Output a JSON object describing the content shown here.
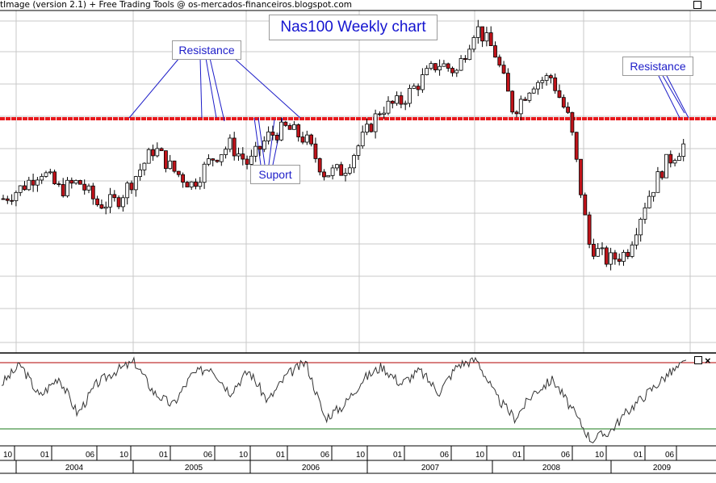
{
  "header": {
    "text": "tImage (version 2.1) + Free Trading Tools @ os-mercados-financeiros.blogspot.com"
  },
  "annotations": {
    "title": "Nas100 Weekly chart",
    "resistance_left": "Resistance",
    "resistance_right": "Resistance",
    "support": "Suport"
  },
  "colors": {
    "resistance_line": "#e8181c",
    "annotation_text": "#1d1dc8",
    "bull_candle": "#ffffff",
    "bear_candle": "#c0131a",
    "oscillator_line": "#333333",
    "oscillator_upper": "#b00000",
    "oscillator_lower": "#1a7a1a"
  },
  "chart_data": [
    {
      "type": "candlestick",
      "name": "Nas100 weekly price",
      "x_range": [
        "2003-08",
        "2009-08"
      ],
      "grid": true,
      "resistance_level": "horizontal line touched in 2004, 2005 and 2009 highs",
      "x": [
        "2003-08",
        "2003-10",
        "2003-12",
        "2004-02",
        "2004-04",
        "2004-06",
        "2004-08",
        "2004-10",
        "2004-12",
        "2005-02",
        "2005-04",
        "2005-06",
        "2005-08",
        "2005-10",
        "2005-12",
        "2006-02",
        "2006-04",
        "2006-06",
        "2006-08",
        "2006-10",
        "2006-12",
        "2007-02",
        "2007-04",
        "2007-06",
        "2007-08",
        "2007-10",
        "2007-12",
        "2008-02",
        "2008-04",
        "2008-06",
        "2008-08",
        "2008-10",
        "2008-12",
        "2009-02",
        "2009-04",
        "2009-06",
        "2009-08"
      ],
      "values": [
        0.64,
        0.68,
        0.74,
        0.67,
        0.7,
        0.62,
        0.63,
        0.72,
        0.82,
        0.74,
        0.69,
        0.78,
        0.83,
        0.76,
        0.86,
        0.89,
        0.85,
        0.73,
        0.74,
        0.85,
        0.96,
        0.98,
        1.05,
        1.12,
        1.09,
        1.25,
        1.16,
        0.95,
        1.05,
        1.07,
        0.91,
        0.48,
        0.42,
        0.45,
        0.63,
        0.76,
        0.83
      ]
    },
    {
      "type": "line",
      "name": "oscillator",
      "x": [
        "2003-08",
        "2003-10",
        "2003-12",
        "2004-02",
        "2004-04",
        "2004-06",
        "2004-08",
        "2004-10",
        "2004-12",
        "2005-02",
        "2005-04",
        "2005-06",
        "2005-08",
        "2005-10",
        "2005-12",
        "2006-02",
        "2006-04",
        "2006-06",
        "2006-08",
        "2006-10",
        "2006-12",
        "2007-02",
        "2007-04",
        "2007-06",
        "2007-08",
        "2007-10",
        "2007-12",
        "2008-02",
        "2008-04",
        "2008-06",
        "2008-08",
        "2008-10",
        "2008-12",
        "2009-02",
        "2009-04",
        "2009-06",
        "2009-08"
      ],
      "values": [
        70,
        92,
        55,
        78,
        35,
        70,
        85,
        95,
        60,
        45,
        80,
        90,
        60,
        85,
        50,
        80,
        95,
        30,
        45,
        75,
        90,
        70,
        85,
        60,
        92,
        98,
        55,
        30,
        60,
        75,
        40,
        5,
        15,
        40,
        60,
        80,
        95
      ],
      "ylim": [
        0,
        100
      ]
    }
  ],
  "axis": {
    "month_ticks": [
      "10",
      "01",
      "06",
      "10",
      "01",
      "06",
      "10",
      "01",
      "06",
      "10",
      "01",
      "06",
      "10",
      "01",
      "06",
      "10",
      "01",
      "06"
    ],
    "year_labels": [
      "2004",
      "2005",
      "2006",
      "2007",
      "2008",
      "2009"
    ]
  }
}
